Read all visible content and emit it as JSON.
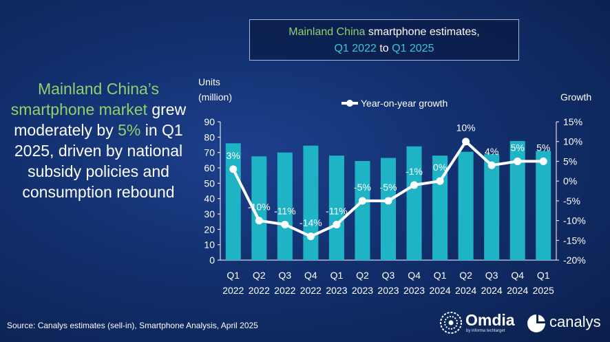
{
  "title": {
    "line1_green": "Mainland China",
    "line1_rest": " smartphone estimates,",
    "line2_start": "Q1 2022",
    "line2_mid": " to ",
    "line2_end": "Q1 2025"
  },
  "headline": {
    "part1": "Mainland China’s smartphone market",
    "part2": " grew moderately by ",
    "part3": "5%",
    "part4": " in Q1 2025, driven by national subsidy policies and consumption rebound"
  },
  "source": "Source: Canalys estimates (sell-in), Smartphone Analysis, April 2025",
  "logos": {
    "omdia": "Omdia",
    "omdia_sub": "by informa techtarget",
    "canalys": "canalys"
  },
  "colors": {
    "bar": "#1fb3c6",
    "line": "#ffffff",
    "title_green": "#8fd16a",
    "title_cyan": "#3fc1df"
  },
  "chart_data": {
    "type": "bar",
    "categories": [
      [
        "Q1",
        "2022"
      ],
      [
        "Q2",
        "2022"
      ],
      [
        "Q3",
        "2022"
      ],
      [
        "Q4",
        "2022"
      ],
      [
        "Q1",
        "2023"
      ],
      [
        "Q2",
        "2023"
      ],
      [
        "Q3",
        "2023"
      ],
      [
        "Q4",
        "2023"
      ],
      [
        "Q1",
        "2024"
      ],
      [
        "Q2",
        "2024"
      ],
      [
        "Q3",
        "2024"
      ],
      [
        "Q4",
        "2024"
      ],
      [
        "Q1",
        "2025"
      ]
    ],
    "ylabel_line1": "Units",
    "ylabel_line2": "(million)",
    "y2label": "Growth",
    "ylim": [
      0,
      90
    ],
    "y_ticks": [
      0,
      10,
      20,
      30,
      40,
      50,
      60,
      70,
      80,
      90
    ],
    "y2lim": [
      -20,
      15
    ],
    "y2_ticks": [
      {
        "value": -20,
        "label": "-20%"
      },
      {
        "value": -15,
        "label": "-15%"
      },
      {
        "value": -10,
        "label": "-10%"
      },
      {
        "value": -5,
        "label": "-5%"
      },
      {
        "value": 0,
        "label": "0%"
      },
      {
        "value": 5,
        "label": "5%"
      },
      {
        "value": 10,
        "label": "10%"
      },
      {
        "value": 15,
        "label": "15%"
      }
    ],
    "series": [
      {
        "axis": "left",
        "type": "bar",
        "values": [
          76,
          67.5,
          70,
          74.5,
          68,
          64.5,
          66.5,
          74,
          68,
          70.5,
          69,
          77.5,
          71
        ]
      },
      {
        "name": "Year-on-year growth",
        "axis": "right",
        "type": "line",
        "values": [
          3,
          -10,
          -11,
          -14,
          -11,
          -5,
          -5,
          -1,
          0,
          10,
          4,
          5,
          5
        ],
        "labels": [
          "3%",
          "-10%",
          "-11%",
          "-14%",
          "-11%",
          "-5%",
          "-5%",
          "-1%",
          "0%",
          "10%",
          "4%",
          "5%",
          "5%"
        ]
      }
    ],
    "legend": "top-center"
  }
}
